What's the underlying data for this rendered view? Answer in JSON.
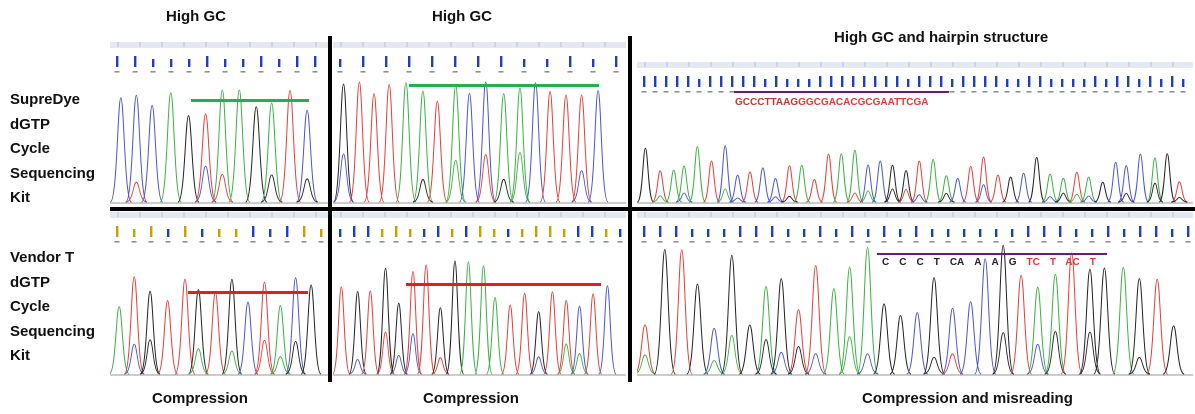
{
  "headers": {
    "col1": "High GC",
    "col2": "High GC",
    "col3": "High GC and hairpin structure"
  },
  "row_labels": {
    "top": [
      "SupreDye",
      "dGTP",
      "Cycle",
      "Sequencing",
      "Kit"
    ],
    "bottom": [
      "Vendor T",
      "dGTP",
      "Cycle",
      "Sequencing",
      "Kit"
    ]
  },
  "footers": {
    "col1": "Compression",
    "col2": "Compression",
    "col3": "Compression and misreading"
  },
  "sequence_top": [
    {
      "text": "GCCCTTAAG",
      "color": "#c0392b"
    },
    {
      "text": "GGCGACACGCGAATTCGA",
      "color": "#e53935"
    }
  ],
  "sequence_bottom": [
    {
      "text": "C",
      "color": "#222222"
    },
    {
      "text": "C",
      "color": "#222222"
    },
    {
      "text": "C",
      "color": "#222222"
    },
    {
      "text": "T",
      "color": "#222222"
    },
    {
      "text": "CA",
      "color": "#222222"
    },
    {
      "text": "A",
      "color": "#222222"
    },
    {
      "text": "A",
      "color": "#222222"
    },
    {
      "text": "G",
      "color": "#222222"
    },
    {
      "text": "TC",
      "color": "#e53935"
    },
    {
      "text": "T",
      "color": "#e53935"
    },
    {
      "text": "AC",
      "color": "#e53935"
    },
    {
      "text": "T",
      "color": "#e53935"
    }
  ],
  "colors": {
    "good_marker": "#22b14c",
    "bad_marker": "#e02020",
    "trace_A": "#3cb043",
    "trace_C": "#4a56c8",
    "trace_G": "#222222",
    "trace_T": "#e0403a",
    "underline": "#6a1b7a",
    "basecall_blue": "#1f3fbf"
  }
}
